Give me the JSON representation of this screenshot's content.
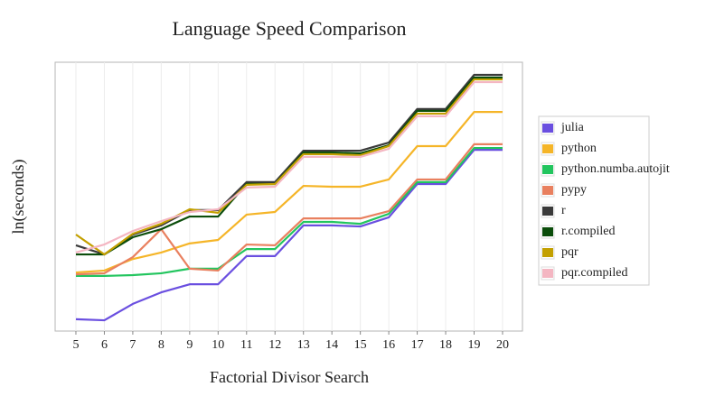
{
  "chart_data": {
    "type": "line",
    "title": "Language Speed Comparison",
    "x_label": "Factorial Divisor Search",
    "y_label": "ln(seconds)",
    "x": [
      5,
      6,
      7,
      8,
      9,
      10,
      11,
      12,
      13,
      14,
      15,
      16,
      17,
      18,
      19,
      20
    ],
    "xlim": [
      4.27,
      20.7
    ],
    "xticks": [
      5,
      6,
      7,
      8,
      9,
      10,
      11,
      12,
      13,
      14,
      15,
      16,
      17,
      18,
      19,
      20
    ],
    "ylim": [
      0,
      100
    ],
    "grid": "x",
    "legend": "right",
    "series": [
      {
        "name": "julia",
        "color": "#6a4fe0",
        "values": [
          4.4,
          4.0,
          10.1,
          14.4,
          17.4,
          17.4,
          27.9,
          27.9,
          39.3,
          39.3,
          38.9,
          42.3,
          54.7,
          54.7,
          67.4,
          67.4
        ]
      },
      {
        "name": "python",
        "color": "#f5b528",
        "values": [
          21.8,
          22.5,
          26.8,
          29.2,
          32.6,
          33.9,
          43.3,
          44.3,
          54.0,
          53.7,
          53.7,
          56.4,
          68.8,
          68.8,
          81.5,
          81.5
        ]
      },
      {
        "name": "python.numba.autojit",
        "color": "#22c55e",
        "values": [
          20.5,
          20.5,
          20.8,
          21.5,
          23.2,
          23.2,
          30.5,
          30.5,
          40.6,
          40.6,
          39.9,
          43.6,
          55.4,
          55.4,
          68.1,
          68.1
        ]
      },
      {
        "name": "pypy",
        "color": "#e9805f",
        "values": [
          21.1,
          21.5,
          27.5,
          37.9,
          23.2,
          22.5,
          32.2,
          31.9,
          41.9,
          41.9,
          41.9,
          44.6,
          56.4,
          56.4,
          69.5,
          69.5
        ]
      },
      {
        "name": "r",
        "color": "#3a3a3a",
        "values": [
          31.9,
          28.5,
          35.9,
          39.3,
          45.0,
          45.0,
          55.4,
          55.4,
          67.1,
          67.1,
          67.1,
          70.1,
          82.6,
          82.6,
          95.3,
          95.3
        ]
      },
      {
        "name": "r.compiled",
        "color": "#0b4d0b",
        "values": [
          28.5,
          28.5,
          34.9,
          37.9,
          42.6,
          42.6,
          54.7,
          54.7,
          66.4,
          66.4,
          66.1,
          69.1,
          81.9,
          81.9,
          94.3,
          94.3
        ]
      },
      {
        "name": "pqr",
        "color": "#c3a000",
        "values": [
          35.9,
          28.5,
          36.2,
          39.9,
          45.3,
          44.0,
          54.4,
          54.7,
          65.8,
          65.8,
          65.4,
          68.8,
          80.9,
          80.9,
          93.6,
          93.6
        ]
      },
      {
        "name": "pqr.compiled",
        "color": "#f4b6c2",
        "values": [
          29.2,
          32.2,
          37.2,
          40.9,
          44.3,
          45.3,
          53.4,
          53.7,
          64.8,
          64.8,
          64.8,
          67.8,
          79.9,
          79.9,
          92.6,
          92.6
        ]
      }
    ]
  }
}
